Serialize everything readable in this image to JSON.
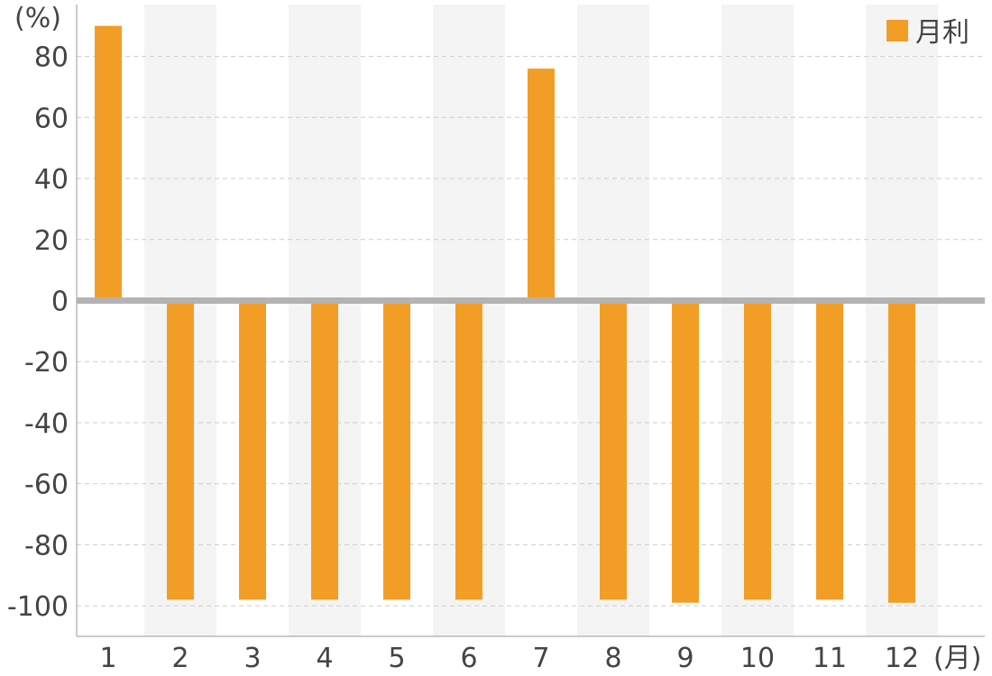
{
  "chart_data": {
    "type": "bar",
    "categories": [
      "1",
      "2",
      "3",
      "4",
      "5",
      "6",
      "7",
      "8",
      "9",
      "10",
      "11",
      "12"
    ],
    "series": [
      {
        "name": "月利",
        "values": [
          90,
          -98,
          -98,
          -98,
          -98,
          -98,
          76,
          -98,
          -99,
          -98,
          -98,
          -99
        ],
        "color": "#f29e26"
      }
    ],
    "ylim": [
      -110,
      97
    ],
    "yticks": [
      -100,
      -80,
      -60,
      -40,
      -20,
      0,
      20,
      40,
      60,
      80
    ],
    "y_unit": "(%)",
    "x_unit": "(月)",
    "grid": true,
    "legend_position": "top-right",
    "colors": {
      "bar": "#f29e26",
      "zero_line": "#b3b3b3",
      "band": "#f4f4f4",
      "grid": "#cccccc",
      "axis": "#999999"
    }
  }
}
